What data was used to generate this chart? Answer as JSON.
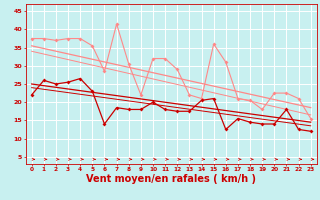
{
  "background_color": "#c8f0f0",
  "grid_color": "#ffffff",
  "xlabel": "Vent moyen/en rafales ( km/h )",
  "xlabel_color": "#cc0000",
  "xlabel_fontsize": 7,
  "tick_color": "#cc0000",
  "yticks": [
    5,
    10,
    15,
    20,
    25,
    30,
    35,
    40,
    45
  ],
  "xticks": [
    0,
    1,
    2,
    3,
    4,
    5,
    6,
    7,
    8,
    9,
    10,
    11,
    12,
    13,
    14,
    15,
    16,
    17,
    18,
    19,
    20,
    21,
    22,
    23
  ],
  "xlim": [
    -0.5,
    23.5
  ],
  "ylim": [
    3,
    47
  ],
  "line_pink": {
    "x": [
      0,
      1,
      2,
      3,
      4,
      5,
      6,
      7,
      8,
      9,
      10,
      11,
      12,
      13,
      14,
      15,
      16,
      17,
      18,
      19,
      20,
      21,
      22,
      23
    ],
    "y": [
      37.5,
      37.5,
      37.0,
      37.5,
      37.5,
      35.5,
      28.5,
      41.5,
      30.5,
      22.0,
      32.0,
      32.0,
      29.0,
      22.0,
      21.0,
      36.0,
      31.0,
      21.0,
      20.5,
      18.0,
      22.5,
      22.5,
      21.0,
      15.5
    ],
    "color": "#ff8888",
    "linewidth": 0.8,
    "markersize": 2.0
  },
  "line_red": {
    "x": [
      0,
      1,
      2,
      3,
      4,
      5,
      6,
      7,
      8,
      9,
      10,
      11,
      12,
      13,
      14,
      15,
      16,
      17,
      18,
      19,
      20,
      21,
      22,
      23
    ],
    "y": [
      22.0,
      26.0,
      25.0,
      25.5,
      26.5,
      23.0,
      14.0,
      18.5,
      18.0,
      18.0,
      20.0,
      18.0,
      17.5,
      17.5,
      20.5,
      21.0,
      12.5,
      15.5,
      14.5,
      14.0,
      14.0,
      18.0,
      12.5,
      12.0
    ],
    "color": "#cc0000",
    "linewidth": 0.9,
    "markersize": 2.0
  },
  "regline_pink1": {
    "x": [
      0,
      23
    ],
    "y": [
      35.5,
      18.5
    ],
    "color": "#ff8888",
    "linewidth": 0.9
  },
  "regline_pink2": {
    "x": [
      0,
      23
    ],
    "y": [
      34.0,
      16.5
    ],
    "color": "#ff8888",
    "linewidth": 0.7
  },
  "regline_red1": {
    "x": [
      0,
      23
    ],
    "y": [
      25.0,
      14.5
    ],
    "color": "#cc0000",
    "linewidth": 0.9
  },
  "regline_red2": {
    "x": [
      0,
      23
    ],
    "y": [
      24.0,
      13.5
    ],
    "color": "#cc0000",
    "linewidth": 0.7
  }
}
